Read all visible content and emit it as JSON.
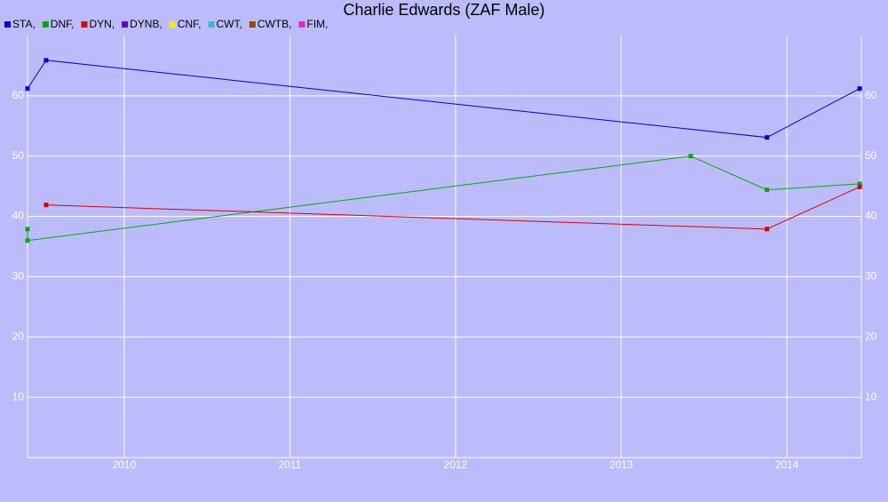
{
  "chart_data": {
    "type": "line",
    "title": "Charlie Edwards (ZAF Male)",
    "series": [
      {
        "name": "STA,",
        "color": "#0000cc",
        "x": [
          2009.416,
          2009.528,
          2013.88,
          2014.44
        ],
        "values": [
          61.2,
          65.9,
          53.1,
          61.2
        ]
      },
      {
        "name": "DNF,",
        "color": "#00aa00",
        "x": [
          2009.416,
          2009.416,
          2013.42,
          2013.88,
          2014.44
        ],
        "values": [
          37.9,
          36.0,
          50.0,
          44.4,
          45.4
        ]
      },
      {
        "name": "DYN,",
        "color": "#dd0000",
        "x": [
          2009.528,
          2013.88,
          2014.44
        ],
        "values": [
          41.9,
          37.9,
          44.9
        ]
      },
      {
        "name": "DYNB,",
        "color": "#6600cc",
        "x": [],
        "values": []
      },
      {
        "name": "CNF,",
        "color": "#eeee00",
        "x": [],
        "values": []
      },
      {
        "name": "CWT,",
        "color": "#33bbcc",
        "x": [],
        "values": []
      },
      {
        "name": "CWTB,",
        "color": "#994400",
        "x": [],
        "values": []
      },
      {
        "name": "FIM,",
        "color": "#ee22cc",
        "x": [],
        "values": []
      }
    ],
    "xlim": [
      2009.416,
      2014.45
    ],
    "xticks": [
      2010,
      2011,
      2012,
      2013,
      2014
    ],
    "ylim": [
      0,
      70
    ],
    "yticks": [
      10,
      20,
      30,
      40,
      50,
      60
    ],
    "grid": true
  }
}
